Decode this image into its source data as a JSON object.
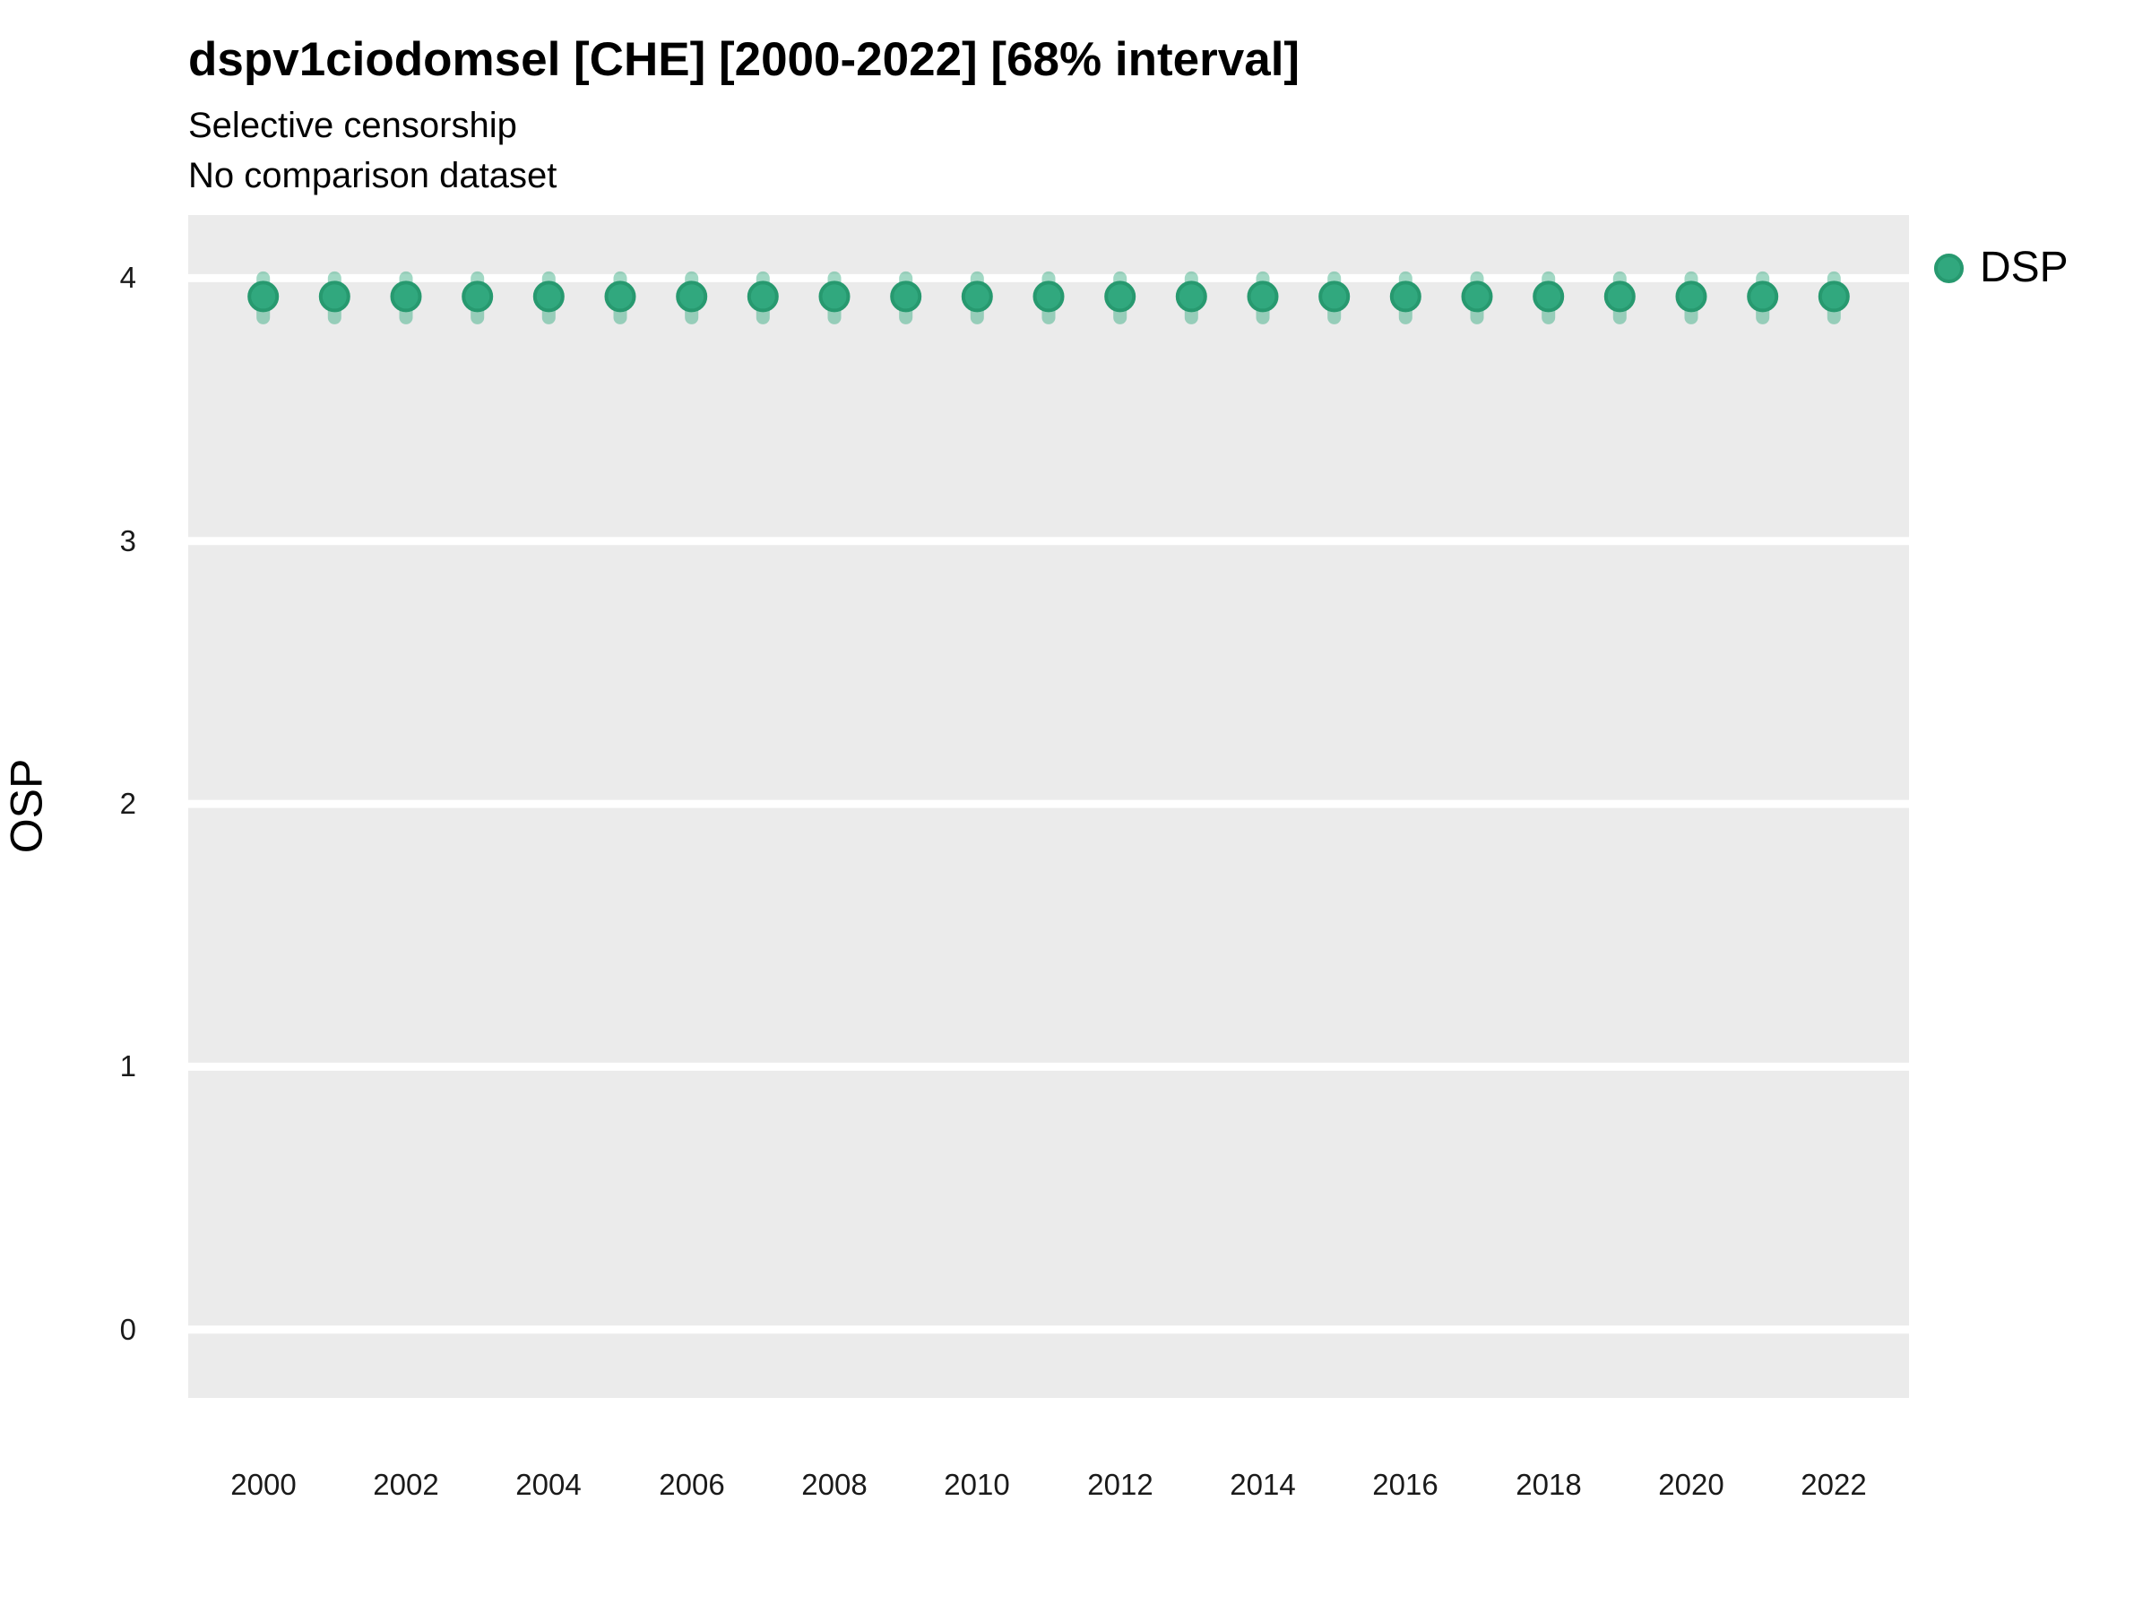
{
  "title": "dspv1ciodomsel [CHE] [2000-2022] [68% interval]",
  "subtitle": "Selective censorship",
  "subtitle2": "No comparison dataset",
  "legend": {
    "position": "right",
    "items": [
      {
        "label": "DSP",
        "marker": "circle"
      }
    ]
  },
  "colors": {
    "point_fill": "#31a87e",
    "point_stroke": "#27996f",
    "interval_bar": "rgba(47,168,125,0.45)",
    "panel_bg": "#ebebeb",
    "gridline": "#ffffff",
    "text": "#000000",
    "tick_text": "#1a1a1a"
  },
  "chart_data": {
    "type": "scatter",
    "title": "dspv1ciodomsel [CHE] [2000-2022] [68% interval]",
    "subtitle": "Selective censorship",
    "subtitle2": "No comparison dataset",
    "xlabel": "",
    "ylabel": "OSP",
    "interval_label": "68% interval",
    "grid": "horizontal-major-only",
    "legend_position": "right",
    "xlim": [
      1998.95,
      2023.05
    ],
    "ylim": [
      -0.26,
      4.24
    ],
    "xticks": [
      2000,
      2002,
      2004,
      2006,
      2008,
      2010,
      2012,
      2014,
      2016,
      2018,
      2020,
      2022
    ],
    "yticks": [
      0,
      1,
      2,
      3,
      4
    ],
    "series": [
      {
        "name": "DSP",
        "x": [
          2000,
          2001,
          2002,
          2003,
          2004,
          2005,
          2006,
          2007,
          2008,
          2009,
          2010,
          2011,
          2012,
          2013,
          2014,
          2015,
          2016,
          2017,
          2018,
          2019,
          2020,
          2021,
          2022
        ],
        "y": [
          3.93,
          3.93,
          3.93,
          3.93,
          3.93,
          3.93,
          3.93,
          3.93,
          3.93,
          3.93,
          3.93,
          3.93,
          3.93,
          3.93,
          3.93,
          3.93,
          3.93,
          3.93,
          3.93,
          3.93,
          3.93,
          3.93,
          3.93
        ],
        "interval_low": [
          3.85,
          3.85,
          3.85,
          3.85,
          3.85,
          3.85,
          3.85,
          3.85,
          3.85,
          3.85,
          3.85,
          3.85,
          3.85,
          3.85,
          3.85,
          3.85,
          3.85,
          3.85,
          3.85,
          3.85,
          3.85,
          3.85,
          3.85
        ],
        "interval_high": [
          4.0,
          4.0,
          4.0,
          4.0,
          4.0,
          4.0,
          4.0,
          4.0,
          4.0,
          4.0,
          4.0,
          4.0,
          4.0,
          4.0,
          4.0,
          4.0,
          4.0,
          4.0,
          4.0,
          4.0,
          4.0,
          4.0,
          4.0
        ]
      }
    ]
  }
}
